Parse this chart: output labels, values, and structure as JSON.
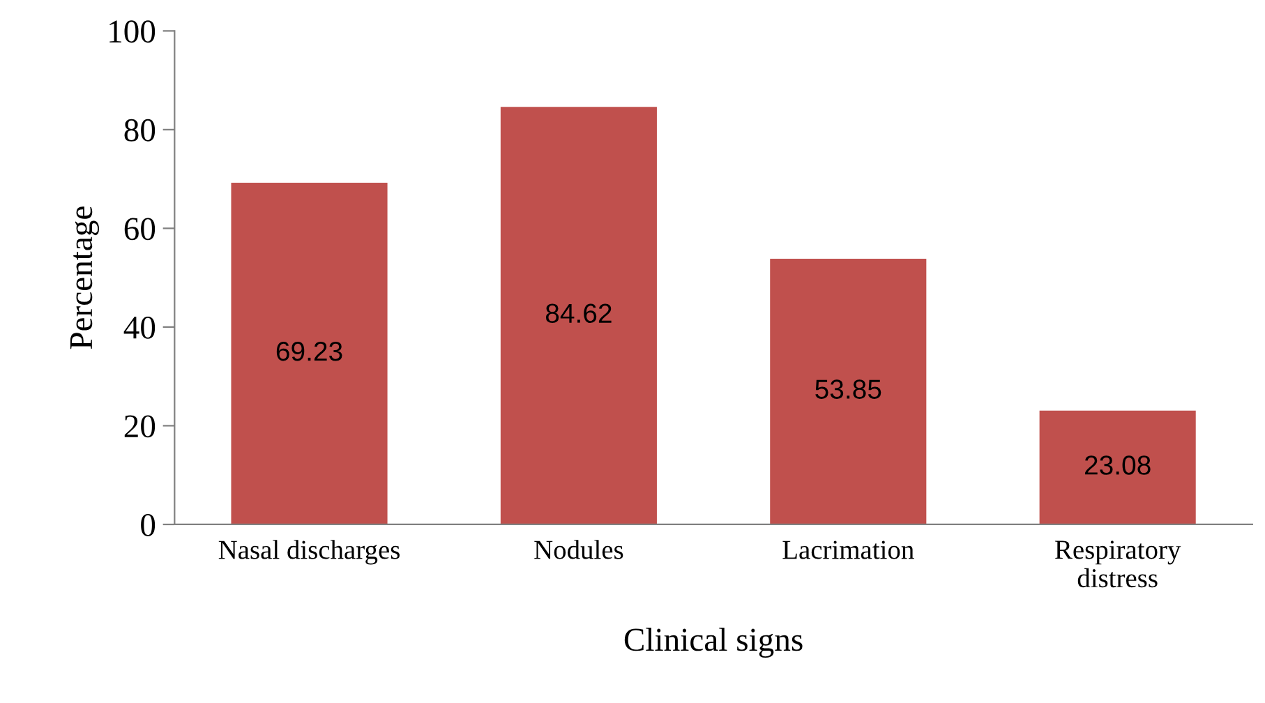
{
  "chart_data": {
    "type": "bar",
    "xlabel": "Clinical signs",
    "ylabel": "Percentage",
    "categories": [
      "Nasal discharges",
      "Nodules",
      "Lacrimation",
      "Respiratory distress"
    ],
    "values": [
      69.23,
      84.62,
      53.85,
      23.08
    ],
    "color": "#c0504d",
    "ylim": [
      0,
      100
    ],
    "yticks": [
      0,
      20,
      40,
      60,
      80,
      100
    ],
    "data_labels": true,
    "grid": false,
    "legend": false
  }
}
